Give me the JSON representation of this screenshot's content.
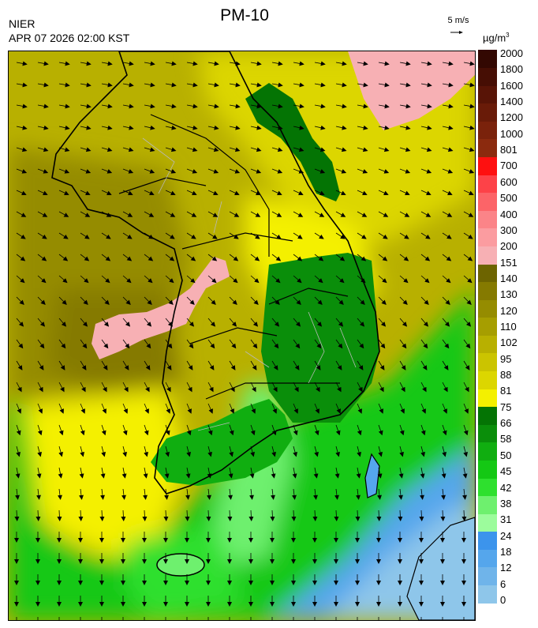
{
  "header": {
    "agency": "NIER",
    "timestamp": "APR 07 2026 02:00 KST",
    "title": "PM-10"
  },
  "wind_scale": {
    "label": "5 m/s",
    "arrow": "→"
  },
  "units": {
    "base": "µg/m",
    "exponent": "3"
  },
  "legend": {
    "bins": [
      {
        "color": "#8ec6ea"
      },
      {
        "color": "#6fb4ea"
      },
      {
        "color": "#55a6ec"
      },
      {
        "color": "#3c94ec"
      },
      {
        "color": "#9cfc9c"
      },
      {
        "color": "#6ef06e"
      },
      {
        "color": "#2ee02e"
      },
      {
        "color": "#14c814"
      },
      {
        "color": "#10ae10"
      },
      {
        "color": "#0a8e0a"
      },
      {
        "color": "#047404"
      },
      {
        "color": "#f4f000"
      },
      {
        "color": "#dcd600"
      },
      {
        "color": "#cbc400"
      },
      {
        "color": "#b8b000"
      },
      {
        "color": "#a69e00"
      },
      {
        "color": "#958c00"
      },
      {
        "color": "#857a00"
      },
      {
        "color": "#6d6400"
      },
      {
        "color": "#f7b0b4"
      },
      {
        "color": "#fb9ca0"
      },
      {
        "color": "#fb8488"
      },
      {
        "color": "#fc6468"
      },
      {
        "color": "#fd4248"
      },
      {
        "color": "#fe1010"
      },
      {
        "color": "#8b2a0e"
      },
      {
        "color": "#7a220b"
      },
      {
        "color": "#691b08"
      },
      {
        "color": "#581406"
      },
      {
        "color": "#460e04"
      },
      {
        "color": "#330802"
      }
    ],
    "labels": [
      "0",
      "6",
      "12",
      "18",
      "24",
      "31",
      "38",
      "42",
      "45",
      "50",
      "58",
      "66",
      "75",
      "81",
      "88",
      "95",
      "102",
      "110",
      "120",
      "130",
      "140",
      "151",
      "200",
      "300",
      "400",
      "500",
      "600",
      "700",
      "801",
      "1000",
      "1200",
      "1400",
      "1600",
      "1800",
      "2000"
    ],
    "label_bins": [
      0,
      1,
      2,
      3,
      4,
      5,
      6,
      7,
      8,
      9,
      10,
      11,
      11,
      12,
      13,
      14,
      15,
      16,
      17,
      18,
      19,
      20,
      21,
      22,
      23,
      24,
      25,
      26,
      27,
      27,
      28,
      28,
      29,
      29,
      30
    ],
    "colors": {
      "land_outline": "#000000",
      "district_lines": "#b9b9b9",
      "wind_arrow": "#000000"
    }
  }
}
